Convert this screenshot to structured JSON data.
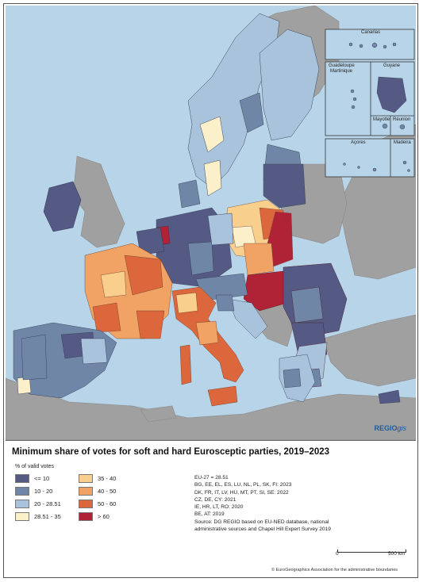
{
  "colors": {
    "le10": "#545a83",
    "10_20": "#7086a6",
    "20_2851": "#a9c3dc",
    "2851_35": "#fcf0cb",
    "35_40": "#f9cf8e",
    "40_50": "#f1a265",
    "50_60": "#dc673d",
    "gt60": "#b02235",
    "non_eu": "#a0a0a0",
    "sea": "#b8d4e8"
  },
  "map": {
    "brand": "REGIO",
    "brand_suffix": "gis"
  },
  "insets": {
    "canarias": "Canarias",
    "guadeloupe": "Guadeloupe",
    "martinique": "Martinique",
    "guyane": "Guyane",
    "mayotte": "Mayotte",
    "reunion": "Réunion",
    "acores": "Açores",
    "madeira": "Madeira"
  },
  "legend": {
    "title": "Minimum share of votes for soft and hard Eurosceptic parties, 2019–2023",
    "unit": "% of valid votes",
    "classes": [
      {
        "label": "<= 10",
        "color_key": "le10"
      },
      {
        "label": "10 - 20",
        "color_key": "10_20"
      },
      {
        "label": "20 - 28.51",
        "color_key": "20_2851"
      },
      {
        "label": "28.51 - 35",
        "color_key": "2851_35"
      },
      {
        "label": "35 - 40",
        "color_key": "35_40"
      },
      {
        "label": "40 - 50",
        "color_key": "40_50"
      },
      {
        "label": "50 - 60",
        "color_key": "50_60"
      },
      {
        "label": "> 60",
        "color_key": "gt60"
      }
    ],
    "notes": [
      "EU-27 = 28.51",
      "BG, EE, EL, ES, LU, NL, PL, SK, FI: 2023",
      "DK, FR, IT, LV, HU, MT, PT, SI, SE: 2022",
      "CZ, DE, CY: 2021",
      "IE, HR, LT, RO: 2020",
      "BE, AT: 2019",
      "Source: DG REGIO based on EU-NED database, national",
      "administrative sources and Chapel Hill Expert Survey 2019"
    ],
    "scale_start": "0",
    "scale_end": "500 km",
    "copyright": "© EuroGeographics Association for the administrative boundaries"
  }
}
